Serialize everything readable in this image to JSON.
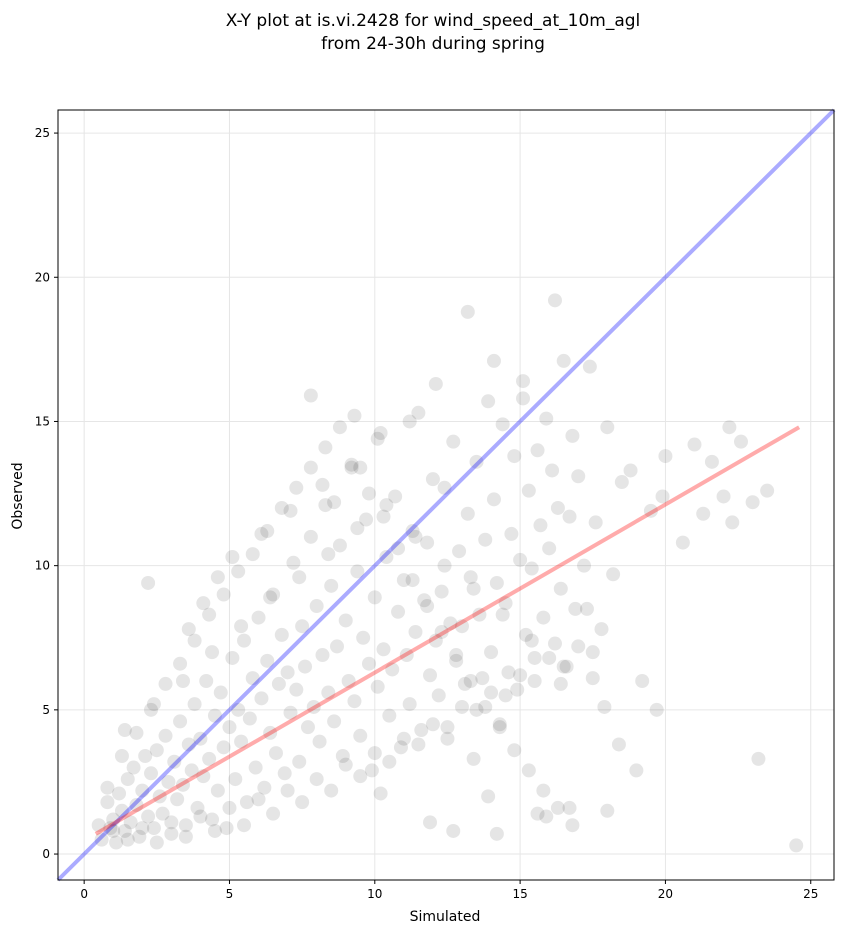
{
  "chart_data": {
    "type": "scatter",
    "title_line1": "X-Y plot at is.vi.2428 for wind_speed_at_10m_agl",
    "title_line2": "from 24-30h during spring",
    "xlabel": "Simulated",
    "ylabel": "Observed",
    "xlim": [
      -0.9,
      25.8
    ],
    "ylim": [
      -0.9,
      25.8
    ],
    "xticks": [
      0,
      5,
      10,
      15,
      20,
      25
    ],
    "yticks": [
      0,
      5,
      10,
      15,
      20,
      25
    ],
    "grid": true,
    "point_color": "#000000",
    "point_alpha": 0.1,
    "identity_line": {
      "color": "#0000ff",
      "alpha": 0.33,
      "x": [
        -0.9,
        25.8
      ],
      "y": [
        -0.9,
        25.8
      ]
    },
    "regression_line": {
      "color": "#ff0000",
      "alpha": 0.33,
      "x": [
        0.4,
        24.6
      ],
      "y": [
        0.7,
        14.8
      ]
    },
    "points": {
      "x": [
        0.5,
        0.6,
        0.8,
        0.9,
        1.0,
        1.1,
        1.2,
        1.3,
        1.4,
        1.5,
        1.6,
        1.7,
        1.8,
        1.9,
        2.0,
        2.1,
        2.2,
        2.3,
        2.4,
        2.5,
        2.6,
        2.7,
        2.8,
        2.9,
        3.0,
        3.1,
        3.2,
        3.3,
        3.4,
        3.5,
        3.6,
        3.7,
        3.8,
        3.9,
        4.0,
        4.1,
        4.2,
        4.3,
        4.4,
        4.5,
        4.6,
        4.7,
        4.8,
        4.9,
        5.0,
        5.1,
        5.2,
        5.3,
        5.4,
        5.5,
        5.6,
        5.7,
        5.8,
        5.9,
        6.0,
        6.1,
        6.2,
        6.3,
        6.4,
        6.5,
        6.6,
        6.7,
        6.8,
        6.9,
        7.0,
        7.1,
        7.2,
        7.3,
        7.4,
        7.5,
        7.6,
        7.7,
        7.8,
        7.9,
        8.0,
        8.1,
        8.2,
        8.3,
        8.4,
        8.5,
        8.6,
        8.7,
        8.8,
        8.9,
        9.0,
        9.1,
        9.2,
        9.3,
        9.4,
        9.5,
        9.6,
        9.7,
        9.8,
        9.9,
        10.0,
        10.1,
        10.2,
        10.3,
        10.4,
        10.5,
        10.6,
        10.7,
        10.8,
        10.9,
        11.0,
        11.1,
        11.2,
        11.3,
        11.4,
        11.5,
        11.6,
        11.7,
        11.8,
        11.9,
        12.0,
        12.1,
        12.2,
        12.3,
        12.4,
        12.5,
        12.6,
        12.7,
        12.8,
        12.9,
        13.0,
        13.1,
        13.2,
        13.3,
        13.4,
        13.5,
        13.6,
        13.7,
        13.8,
        13.9,
        14.0,
        14.1,
        14.2,
        14.3,
        14.4,
        14.5,
        14.6,
        14.7,
        14.8,
        14.9,
        15.0,
        15.1,
        15.2,
        15.3,
        15.4,
        15.5,
        15.6,
        15.7,
        15.8,
        15.9,
        16.0,
        16.1,
        16.2,
        16.3,
        16.4,
        16.5,
        16.6,
        16.7,
        16.8,
        16.9,
        17.0,
        17.2,
        17.4,
        17.6,
        17.8,
        18.0,
        18.2,
        18.5,
        18.8,
        19.2,
        19.5,
        19.7,
        20.0,
        20.6,
        21.0,
        21.3,
        21.6,
        22.0,
        22.3,
        22.6,
        23.0,
        23.5,
        24.5,
        1.0,
        1.5,
        2.0,
        2.5,
        3.0,
        3.5,
        4.0,
        4.5,
        5.0,
        5.5,
        6.0,
        6.5,
        7.0,
        7.5,
        8.0,
        8.5,
        9.0,
        9.5,
        10.0,
        10.5,
        11.0,
        11.5,
        12.0,
        12.5,
        13.0,
        13.5,
        14.0,
        14.5,
        15.0,
        15.5,
        16.0,
        16.5,
        17.0,
        17.5,
        18.0,
        0.8,
        1.3,
        1.8,
        2.3,
        2.8,
        3.3,
        3.8,
        4.3,
        4.8,
        5.3,
        5.8,
        6.3,
        6.8,
        7.3,
        7.8,
        8.3,
        8.8,
        9.3,
        9.8,
        10.3,
        10.8,
        11.3,
        11.8,
        12.3,
        12.8,
        13.3,
        13.8,
        14.3,
        14.8,
        15.3,
        15.8,
        16.3,
        16.8,
        17.3,
        2.2,
        3.6,
        4.1,
        4.6,
        5.1,
        6.1,
        7.1,
        8.2,
        9.2,
        10.1,
        11.2,
        12.1,
        13.2,
        14.1,
        15.1,
        16.2,
        17.5,
        19.9,
        22.2,
        23.2,
        1.4,
        2.4,
        3.4,
        4.4,
        5.4,
        6.4,
        7.4,
        8.4,
        9.4,
        10.4,
        11.4,
        12.4,
        13.4,
        14.4,
        15.4,
        16.4,
        17.9,
        18.4,
        19.0,
        14.2,
        15.9,
        16.7,
        10.2,
        11.9,
        12.7,
        13.9,
        15.6,
        7.8,
        8.6,
        9.5
      ],
      "y": [
        1.0,
        0.5,
        1.8,
        0.9,
        1.2,
        0.4,
        2.1,
        1.5,
        0.8,
        2.6,
        1.1,
        3.0,
        1.7,
        0.6,
        2.2,
        3.4,
        1.3,
        2.8,
        0.9,
        3.6,
        2.0,
        1.4,
        4.1,
        2.5,
        0.7,
        3.2,
        1.9,
        4.6,
        2.4,
        1.0,
        3.8,
        2.9,
        5.2,
        1.6,
        4.0,
        2.7,
        6.0,
        3.3,
        1.2,
        4.8,
        2.2,
        5.6,
        3.7,
        0.9,
        4.4,
        6.8,
        2.6,
        5.0,
        3.9,
        7.4,
        1.8,
        4.7,
        6.1,
        3.0,
        8.2,
        5.4,
        2.3,
        6.7,
        4.2,
        9.0,
        3.5,
        5.9,
        7.6,
        2.8,
        6.3,
        4.9,
        10.1,
        5.7,
        3.2,
        7.9,
        6.5,
        4.4,
        11.0,
        5.1,
        8.6,
        3.9,
        6.9,
        12.1,
        5.6,
        9.3,
        4.6,
        7.2,
        10.7,
        3.4,
        8.1,
        6.0,
        13.4,
        5.3,
        9.8,
        4.1,
        7.5,
        11.6,
        6.6,
        2.9,
        8.9,
        5.8,
        14.6,
        7.1,
        10.3,
        4.8,
        6.4,
        12.4,
        8.4,
        3.7,
        9.5,
        6.9,
        5.2,
        11.2,
        7.7,
        15.3,
        4.3,
        8.8,
        10.8,
        6.2,
        13.0,
        7.4,
        5.5,
        9.1,
        12.7,
        4.0,
        8.0,
        14.3,
        6.7,
        10.5,
        7.9,
        5.9,
        11.8,
        9.6,
        3.3,
        13.6,
        8.3,
        6.1,
        10.9,
        15.7,
        7.0,
        12.3,
        9.4,
        4.5,
        14.9,
        8.7,
        6.3,
        11.1,
        13.8,
        5.7,
        10.2,
        16.4,
        7.6,
        12.6,
        9.9,
        6.8,
        14.0,
        11.4,
        8.2,
        15.1,
        10.6,
        13.3,
        7.3,
        12.0,
        9.2,
        17.1,
        6.5,
        11.7,
        14.5,
        8.5,
        13.1,
        10.0,
        16.9,
        11.5,
        7.8,
        14.8,
        9.7,
        12.9,
        13.3,
        6.0,
        11.9,
        5.0,
        13.8,
        10.8,
        14.2,
        11.8,
        13.6,
        12.4,
        11.5,
        14.3,
        12.2,
        12.6,
        0.3,
        0.8,
        0.5,
        0.9,
        0.4,
        1.1,
        0.6,
        1.3,
        0.8,
        1.6,
        1.0,
        1.9,
        1.4,
        2.2,
        1.8,
        2.6,
        2.2,
        3.1,
        2.7,
        3.5,
        3.2,
        4.0,
        3.8,
        4.5,
        4.4,
        5.1,
        5.0,
        5.6,
        5.5,
        6.2,
        6.0,
        6.8,
        6.5,
        7.2,
        7.0,
        1.5,
        2.3,
        3.4,
        4.2,
        5.0,
        5.9,
        6.6,
        7.4,
        8.3,
        9.0,
        9.8,
        10.4,
        11.2,
        12.0,
        12.7,
        13.4,
        14.1,
        14.8,
        15.2,
        12.5,
        11.7,
        10.6,
        9.5,
        8.6,
        7.7,
        6.9,
        6.0,
        5.1,
        4.4,
        3.6,
        2.9,
        2.2,
        1.6,
        1.0,
        8.5,
        9.4,
        7.8,
        8.7,
        9.6,
        10.3,
        11.1,
        11.9,
        12.8,
        13.5,
        14.4,
        15.0,
        16.3,
        18.8,
        17.1,
        15.8,
        19.2,
        6.1,
        12.4,
        14.8,
        3.3,
        4.3,
        5.2,
        6.0,
        7.0,
        7.9,
        8.9,
        9.6,
        10.4,
        11.3,
        12.1,
        11.0,
        10.0,
        9.2,
        8.3,
        7.4,
        5.9,
        5.1,
        3.8,
        2.9,
        0.7,
        1.3,
        1.6,
        2.1,
        1.1,
        0.8,
        2.0,
        1.4,
        15.9,
        12.2,
        13.4
      ]
    }
  }
}
